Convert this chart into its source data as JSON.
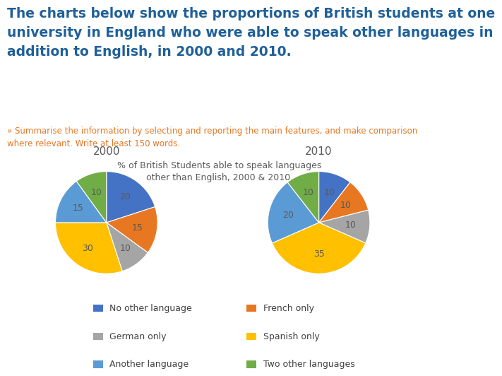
{
  "title_main": "The charts below show the proportions of British students at one\nuniversity in England who were able to speak other languages in\naddition to English, in 2000 and 2010.",
  "subtitle": "» Summarise the information by selecting and reporting the main features, and make comparison\nwhere relevant. Write at least 150 words.",
  "chart_title": "% of British Students able to speak languages\nother than English, 2000 & 2010.",
  "title_main_color": "#1F6099",
  "subtitle_color": "#E87722",
  "chart_title_color": "#595959",
  "year_labels": [
    "2000",
    "2010"
  ],
  "categories": [
    "No other language",
    "French only",
    "German only",
    "Spanish only",
    "Another language",
    "Two other languages"
  ],
  "colors": [
    "#4472C4",
    "#E87722",
    "#A5A5A5",
    "#FFC000",
    "#5B9BD5",
    "#70AD47"
  ],
  "values_2000": [
    20,
    15,
    10,
    30,
    15,
    10
  ],
  "values_2010": [
    10,
    10,
    10,
    35,
    20,
    10
  ],
  "background_color": "#FFFFFF",
  "label_color": "#595959",
  "title_fontsize": 13.5,
  "subtitle_fontsize": 8.5,
  "chart_title_fontsize": 9,
  "year_fontsize": 11,
  "pie_label_fontsize": 9,
  "legend_fontsize": 9
}
